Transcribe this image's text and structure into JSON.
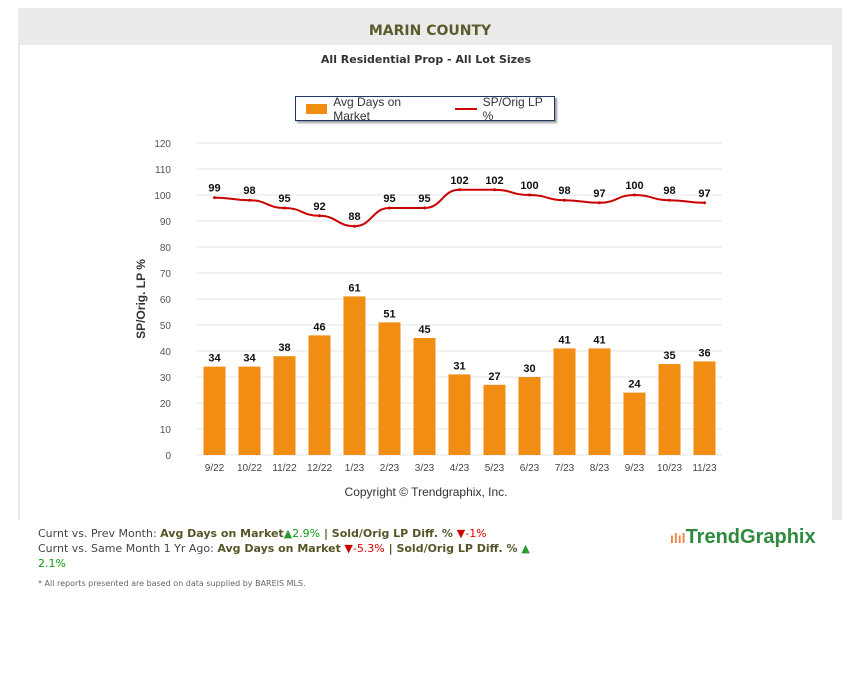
{
  "title": "MARIN COUNTY",
  "subtitle": "All Residential Prop - All Lot Sizes",
  "copyright": "Copyright © Trendgraphix, Inc.",
  "logo": "TrendGraphix",
  "colors": {
    "bar": "#f18d12",
    "line": "#cc0000"
  },
  "chart_data": {
    "type": "bar+line",
    "categories": [
      "9/22",
      "10/22",
      "11/22",
      "12/22",
      "1/23",
      "2/23",
      "3/23",
      "4/23",
      "5/23",
      "6/23",
      "7/23",
      "8/23",
      "9/23",
      "10/23",
      "11/23"
    ],
    "series": [
      {
        "name": "Avg Days on Market",
        "type": "bar",
        "values": [
          34,
          34,
          38,
          46,
          61,
          51,
          45,
          31,
          27,
          30,
          41,
          41,
          24,
          35,
          36
        ]
      },
      {
        "name": "SP/Orig LP %",
        "type": "line",
        "values": [
          99,
          98,
          95,
          92,
          88,
          95,
          95,
          102,
          102,
          100,
          98,
          97,
          100,
          98,
          97
        ]
      }
    ],
    "ylabel": "SP/Orig. LP %",
    "ylim": [
      0,
      120
    ],
    "yticks": [
      0,
      10,
      20,
      30,
      40,
      50,
      60,
      70,
      80,
      90,
      100,
      110,
      120
    ],
    "grid": true,
    "legend": "top"
  },
  "stats": {
    "line1_label": "Curnt vs. Prev Month: ",
    "line2_label": "Curnt vs. Same Month 1 Yr Ago: ",
    "dom_label": "Avg Days on Market",
    "lp_label": " | Sold/Orig LP Diff. % ",
    "prev_dom": "2.9%",
    "prev_lp": "-1%",
    "yr_dom": "-5.3%",
    "yr_lp": "2.1%"
  },
  "footnote": "* All reports presented are based on data supplied by BAREIS MLS."
}
